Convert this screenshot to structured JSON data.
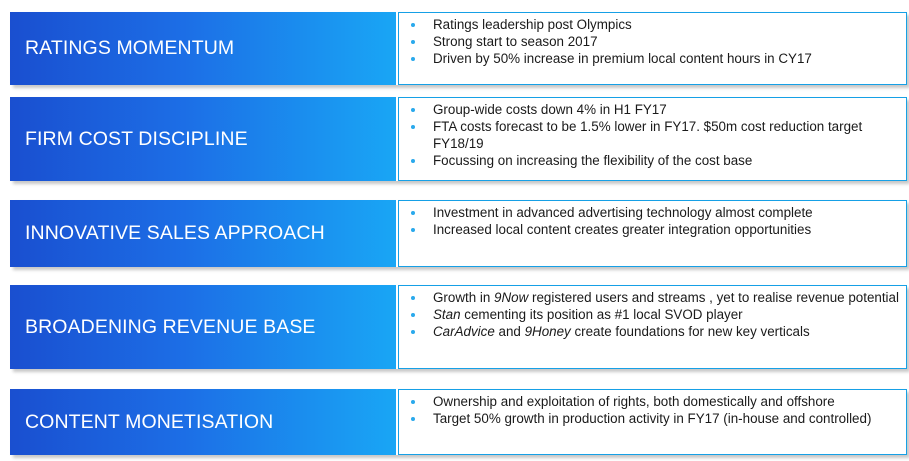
{
  "sections": [
    {
      "title": "RATINGS MOMENTUM",
      "bullets": [
        [
          {
            "t": "Ratings leadership post Olympics"
          }
        ],
        [
          {
            "t": "Strong start to season 2017"
          }
        ],
        [
          {
            "t": "Driven by 50% increase in premium local content hours in CY17"
          }
        ]
      ]
    },
    {
      "title": "FIRM COST DISCIPLINE",
      "bullets": [
        [
          {
            "t": "Group-wide costs down 4% in H1 FY17"
          }
        ],
        [
          {
            "t": "FTA costs forecast to be 1.5% lower in FY17. $50m cost reduction target FY18/19"
          }
        ],
        [
          {
            "t": "Focussing on increasing the flexibility of the cost base"
          }
        ]
      ]
    },
    {
      "title": "INNOVATIVE SALES APPROACH",
      "bullets": [
        [
          {
            "t": "Investment in advanced advertising technology almost complete"
          }
        ],
        [
          {
            "t": "Increased local content creates greater integration opportunities"
          }
        ]
      ]
    },
    {
      "title": "BROADENING REVENUE BASE",
      "bullets": [
        [
          {
            "t": "Growth in "
          },
          {
            "t": "9Now",
            "i": true
          },
          {
            "t": " registered users and streams , yet to realise revenue potential"
          }
        ],
        [
          {
            "t": "Stan",
            "i": true
          },
          {
            "t": " cementing its position as #1 local SVOD player"
          }
        ],
        [
          {
            "t": "CarAdvice",
            "i": true
          },
          {
            "t": " and "
          },
          {
            "t": "9Honey",
            "i": true
          },
          {
            "t": " create foundations for new key verticals"
          }
        ]
      ]
    },
    {
      "title": "CONTENT MONETISATION",
      "bullets": [
        [
          {
            "t": "Ownership and exploitation of rights, both domestically and offshore"
          }
        ],
        [
          {
            "t": "Target 50% growth in production activity in FY17 (in-house and controlled)"
          }
        ]
      ]
    }
  ]
}
